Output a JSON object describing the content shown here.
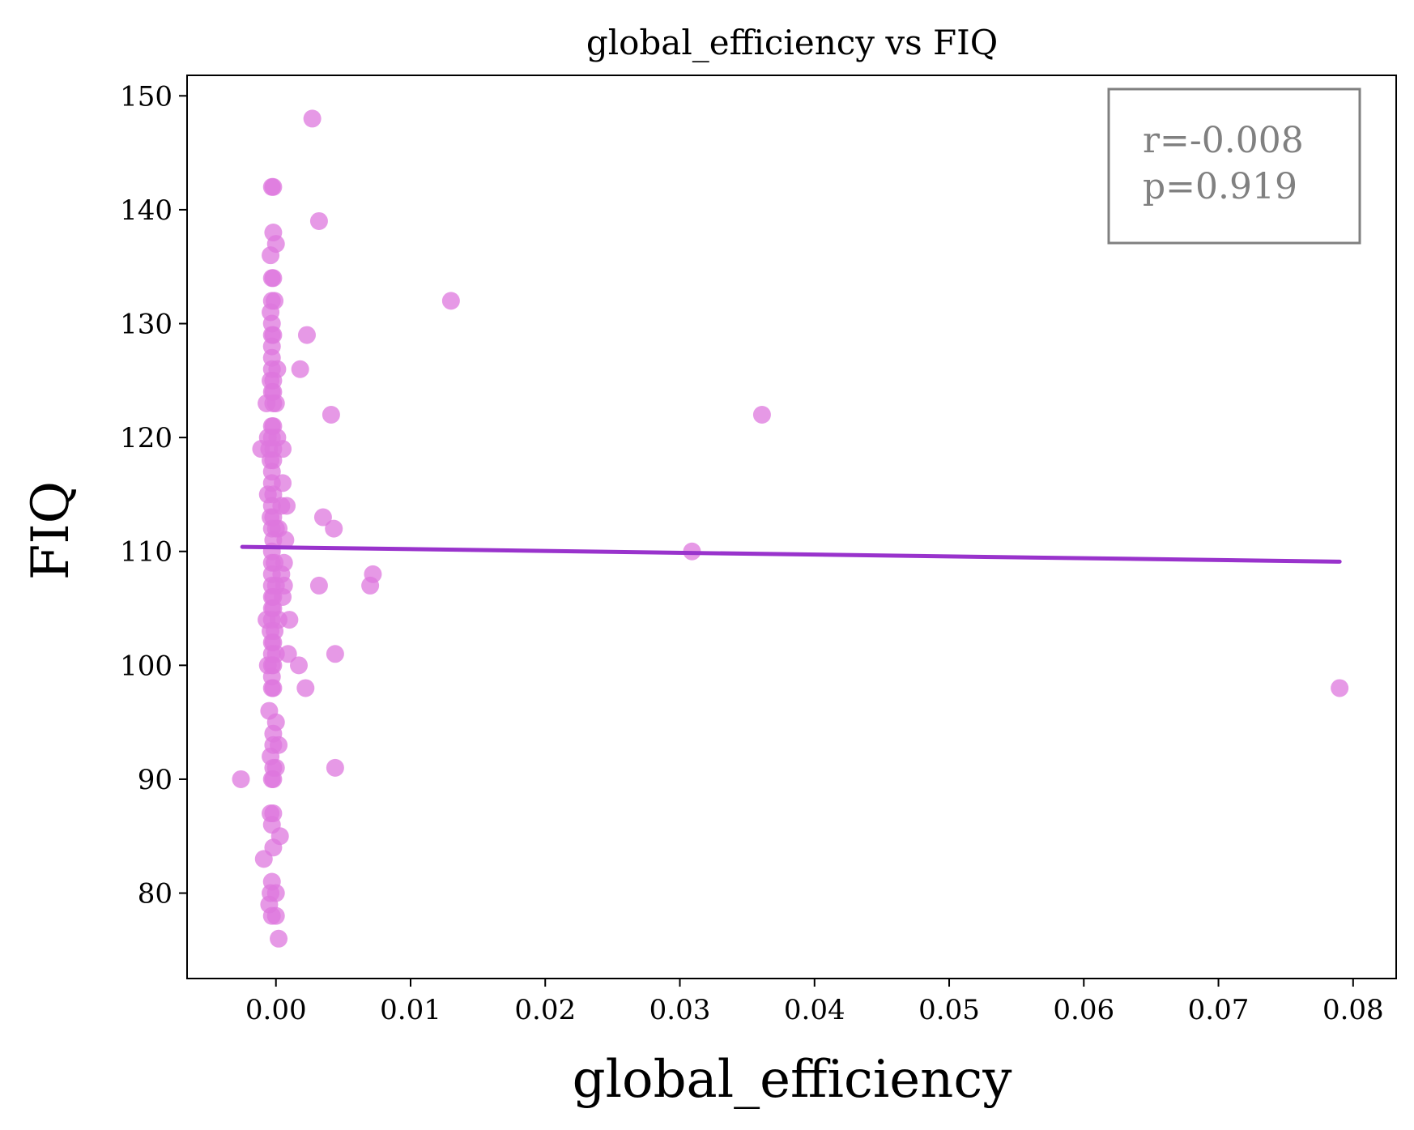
{
  "chart_data": {
    "type": "scatter",
    "title": "global_efficiency vs FIQ",
    "xlabel": "global_efficiency",
    "ylabel": "FIQ",
    "xlim": [
      -0.0066,
      0.0832
    ],
    "ylim": [
      72.5,
      151.8
    ],
    "xticks": [
      0.0,
      0.01,
      0.02,
      0.03,
      0.04,
      0.05,
      0.06,
      0.07,
      0.08
    ],
    "xtick_labels": [
      "0.00",
      "0.01",
      "0.02",
      "0.03",
      "0.04",
      "0.05",
      "0.06",
      "0.07",
      "0.08"
    ],
    "yticks": [
      80,
      90,
      100,
      110,
      120,
      130,
      140,
      150
    ],
    "ytick_labels": [
      "80",
      "90",
      "100",
      "110",
      "120",
      "130",
      "140",
      "150"
    ],
    "grid": false,
    "colors": {
      "points": "#dd77dd",
      "trend": "#9933cc",
      "stats_text": "#808080",
      "stats_box": "#808080"
    },
    "stats": {
      "r_text": "r=-0.008",
      "p_text": "p=0.919"
    },
    "trend_line": {
      "x": [
        -0.0025,
        0.079
      ],
      "y": [
        110.4,
        109.1
      ]
    },
    "points": [
      [
        0.0027,
        148
      ],
      [
        -0.0003,
        142
      ],
      [
        -0.0002,
        142
      ],
      [
        0.0032,
        139
      ],
      [
        -0.0002,
        138
      ],
      [
        0.0,
        137
      ],
      [
        -0.0004,
        136
      ],
      [
        -0.0003,
        134
      ],
      [
        -0.0002,
        134
      ],
      [
        -0.0003,
        132
      ],
      [
        -0.0001,
        132
      ],
      [
        0.013,
        132
      ],
      [
        -0.0004,
        131
      ],
      [
        -0.0003,
        130
      ],
      [
        -0.0003,
        129
      ],
      [
        -0.0002,
        129
      ],
      [
        0.0023,
        129
      ],
      [
        -0.0003,
        128
      ],
      [
        -0.0003,
        127
      ],
      [
        -0.0003,
        126
      ],
      [
        0.0001,
        126
      ],
      [
        0.0018,
        126
      ],
      [
        -0.0004,
        125
      ],
      [
        -0.0002,
        125
      ],
      [
        -0.0003,
        124
      ],
      [
        -0.0002,
        124
      ],
      [
        -0.0007,
        123
      ],
      [
        -0.0002,
        123
      ],
      [
        0.0,
        123
      ],
      [
        0.0041,
        122
      ],
      [
        0.0361,
        122
      ],
      [
        -0.0003,
        121
      ],
      [
        -0.0002,
        121
      ],
      [
        -0.0006,
        120
      ],
      [
        -0.0003,
        120
      ],
      [
        0.0001,
        120
      ],
      [
        -0.0011,
        119
      ],
      [
        -0.0005,
        119
      ],
      [
        -0.0002,
        119
      ],
      [
        0.0005,
        119
      ],
      [
        -0.0004,
        118
      ],
      [
        -0.0002,
        118
      ],
      [
        -0.0003,
        117
      ],
      [
        -0.0003,
        116
      ],
      [
        0.0005,
        116
      ],
      [
        -0.0006,
        115
      ],
      [
        -0.0002,
        115
      ],
      [
        -0.0003,
        114
      ],
      [
        0.0004,
        114
      ],
      [
        0.0008,
        114
      ],
      [
        -0.0004,
        113
      ],
      [
        -0.0002,
        113
      ],
      [
        0.0035,
        113
      ],
      [
        -0.0003,
        112
      ],
      [
        0.0,
        112
      ],
      [
        0.0002,
        112
      ],
      [
        0.0043,
        112
      ],
      [
        -0.0002,
        111
      ],
      [
        0.0007,
        111
      ],
      [
        -0.0003,
        110
      ],
      [
        0.0309,
        110
      ],
      [
        -0.0003,
        109
      ],
      [
        -0.0001,
        109
      ],
      [
        0.0006,
        109
      ],
      [
        -0.0003,
        108
      ],
      [
        0.0004,
        108
      ],
      [
        0.0072,
        108
      ],
      [
        -0.0003,
        107
      ],
      [
        0.0,
        107
      ],
      [
        0.0006,
        107
      ],
      [
        0.0032,
        107
      ],
      [
        0.007,
        107
      ],
      [
        -0.0003,
        106
      ],
      [
        -0.0002,
        106
      ],
      [
        0.0005,
        106
      ],
      [
        -0.0003,
        105
      ],
      [
        -0.0002,
        105
      ],
      [
        -0.0007,
        104
      ],
      [
        -0.0003,
        104
      ],
      [
        0.0002,
        104
      ],
      [
        0.001,
        104
      ],
      [
        -0.0004,
        103
      ],
      [
        -0.0001,
        103
      ],
      [
        -0.0003,
        102
      ],
      [
        -0.0002,
        102
      ],
      [
        -0.0003,
        101
      ],
      [
        0.0,
        101
      ],
      [
        0.0009,
        101
      ],
      [
        0.0044,
        101
      ],
      [
        -0.0006,
        100
      ],
      [
        -0.0003,
        100
      ],
      [
        -0.0002,
        100
      ],
      [
        0.0017,
        100
      ],
      [
        -0.0003,
        99
      ],
      [
        -0.0003,
        98
      ],
      [
        -0.0002,
        98
      ],
      [
        0.0022,
        98
      ],
      [
        0.079,
        98
      ],
      [
        -0.0005,
        96
      ],
      [
        0.0,
        95
      ],
      [
        -0.0002,
        94
      ],
      [
        -0.0004,
        92
      ],
      [
        -0.0002,
        93
      ],
      [
        0.0002,
        93
      ],
      [
        -0.0002,
        91
      ],
      [
        0.0,
        91
      ],
      [
        0.0044,
        91
      ],
      [
        -0.0026,
        90
      ],
      [
        -0.0003,
        90
      ],
      [
        -0.0002,
        90
      ],
      [
        -0.0004,
        87
      ],
      [
        -0.0002,
        87
      ],
      [
        -0.0003,
        86
      ],
      [
        0.0003,
        85
      ],
      [
        -0.0002,
        84
      ],
      [
        -0.0009,
        83
      ],
      [
        -0.0003,
        81
      ],
      [
        -0.0004,
        80
      ],
      [
        0.0,
        80
      ],
      [
        -0.0005,
        79
      ],
      [
        -0.0003,
        78
      ],
      [
        0.0,
        78
      ],
      [
        0.0002,
        76
      ]
    ]
  }
}
